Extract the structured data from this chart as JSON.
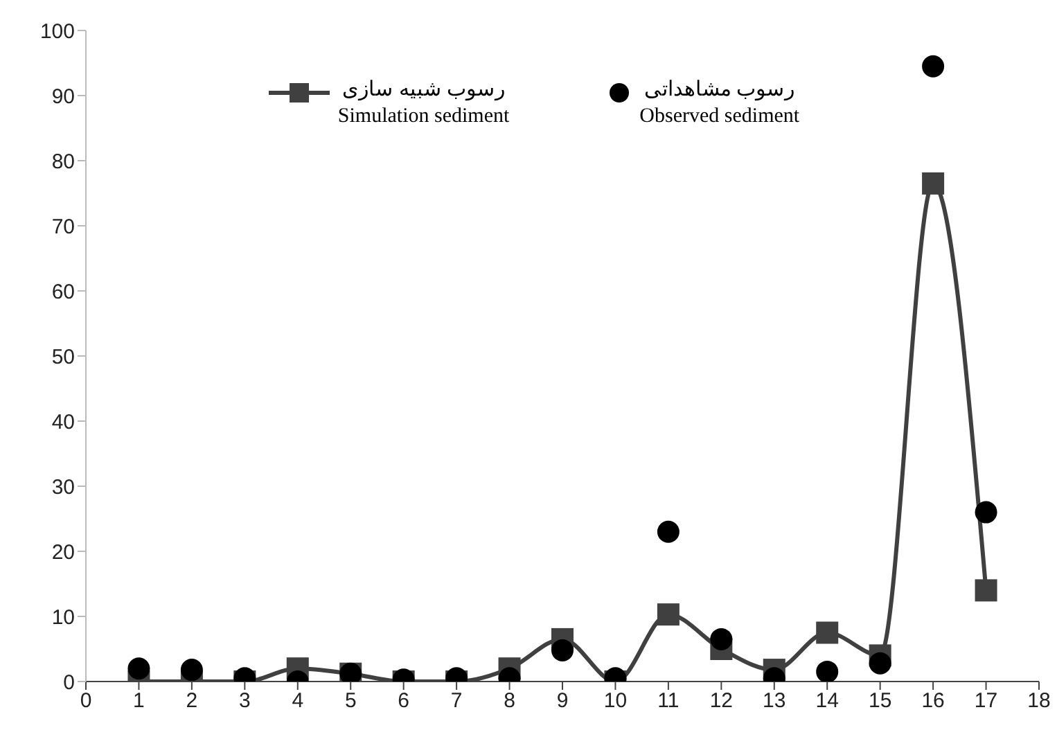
{
  "chart_data": {
    "type": "line",
    "x": [
      1,
      2,
      3,
      4,
      5,
      6,
      7,
      8,
      9,
      10,
      11,
      12,
      13,
      14,
      15,
      16,
      17
    ],
    "series": [
      {
        "name": "رسوب شبیه سازی\nSimulation sediment",
        "marker": "square",
        "color": "#404040",
        "values": [
          0,
          0,
          0,
          2,
          1.2,
          0,
          0,
          2,
          6.5,
          0,
          10.3,
          5,
          1.8,
          7.5,
          4,
          76.5,
          14
        ]
      },
      {
        "name": "رسوب مشاهداتی\nObserved sediment",
        "type": "scatter",
        "marker": "circle",
        "color": "#000000",
        "values": [
          2,
          1.8,
          0.5,
          0,
          1.2,
          0.3,
          0.5,
          0.5,
          4.8,
          0.5,
          23,
          6.5,
          0.5,
          1.5,
          2.8,
          94.5,
          26
        ]
      }
    ],
    "xlim": [
      0,
      18
    ],
    "xticks": [
      0,
      1,
      2,
      3,
      4,
      5,
      6,
      7,
      8,
      9,
      10,
      11,
      12,
      13,
      14,
      15,
      16,
      17,
      18
    ],
    "ylim": [
      0,
      100
    ],
    "yticks": [
      0,
      10,
      20,
      30,
      40,
      50,
      60,
      70,
      80,
      90,
      100
    ],
    "grid": false,
    "legend": "top"
  }
}
